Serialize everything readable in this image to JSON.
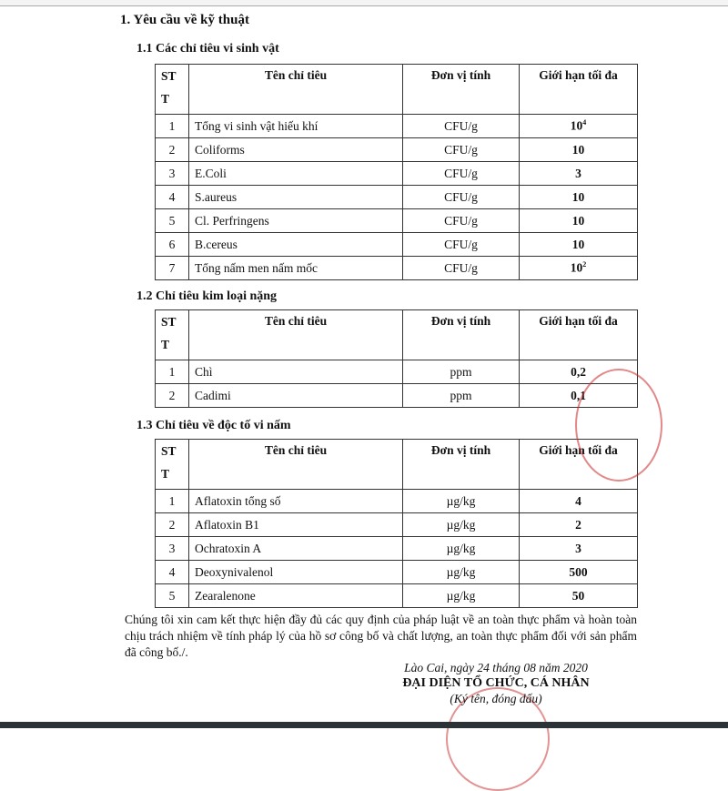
{
  "heading": "1.  Yêu cầu về kỹ thuật",
  "columns": {
    "stt": "ST T",
    "name": "Tên chỉ tiêu",
    "unit": "Đơn vị tính",
    "limit": "Giới hạn tối đa"
  },
  "sections": [
    {
      "title": "1.1 Các chỉ tiêu vi sinh vật",
      "rows": [
        {
          "stt": "1",
          "name": "Tổng vi sinh vật hiếu khí",
          "unit": "CFU/g",
          "limit": "10",
          "sup": "4"
        },
        {
          "stt": "2",
          "name": "Coliforms",
          "unit": "CFU/g",
          "limit": "10"
        },
        {
          "stt": "3",
          "name": "E.Coli",
          "unit": "CFU/g",
          "limit": "3"
        },
        {
          "stt": "4",
          "name": "S.aureus",
          "unit": "CFU/g",
          "limit": "10"
        },
        {
          "stt": "5",
          "name": "Cl. Perfringens",
          "unit": "CFU/g",
          "limit": "10"
        },
        {
          "stt": "6",
          "name": "B.cereus",
          "unit": "CFU/g",
          "limit": "10"
        },
        {
          "stt": "7",
          "name": "Tổng nấm men nấm mốc",
          "unit": "CFU/g",
          "limit": "10",
          "sup": "2"
        }
      ]
    },
    {
      "title": "1.2 Chỉ tiêu kim loại nặng",
      "rows": [
        {
          "stt": "1",
          "name": "Chì",
          "unit": "ppm",
          "limit": "0,2"
        },
        {
          "stt": "2",
          "name": "Cadimi",
          "unit": "ppm",
          "limit": "0,1"
        }
      ]
    },
    {
      "title": "1.3 Chỉ tiêu về độc tố vi nấm",
      "rows": [
        {
          "stt": "1",
          "name": "Aflatoxin tổng số",
          "unit": "µg/kg",
          "limit": "4"
        },
        {
          "stt": "2",
          "name": "Aflatoxin B1",
          "unit": "µg/kg",
          "limit": "2"
        },
        {
          "stt": "3",
          "name": "Ochratoxin A",
          "unit": "µg/kg",
          "limit": "3"
        },
        {
          "stt": "4",
          "name": "Deoxynivalenol",
          "unit": "µg/kg",
          "limit": "500"
        },
        {
          "stt": "5",
          "name": "Zearalenone",
          "unit": "µg/kg",
          "limit": "50"
        }
      ]
    }
  ],
  "commitment": "Chúng tôi xin cam kết thực hiện đầy đủ các quy định của pháp luật về an toàn thực phẩm và hoàn toàn chịu trách nhiệm về tính pháp lý của hồ sơ công bố và chất lượng, an toàn thực phẩm đối với sản phẩm đã công bố./.",
  "signature": {
    "place_date": "Lào Cai, ngày 24 tháng 08 năm 2020",
    "title": "ĐẠI DIỆN TỔ CHỨC, CÁ NHÂN",
    "note": "(Ký tên, đóng dấu)"
  },
  "stamp_color": "#c82828"
}
